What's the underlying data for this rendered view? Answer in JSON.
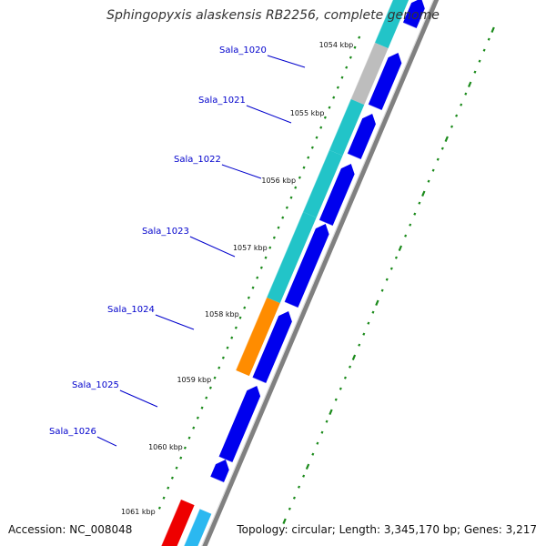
{
  "title": "Sphingopyxis alaskensis RB2256, complete genome",
  "footer": {
    "accession": "Accession: NC_008048",
    "summary": "Topology: circular; Length: 3,345,170 bp; Genes: 3,217"
  },
  "genes": [
    {
      "id": "sala-1020",
      "label": "Sala_1020"
    },
    {
      "id": "sala-1021",
      "label": "Sala_1021"
    },
    {
      "id": "sala-1022",
      "label": "Sala_1022"
    },
    {
      "id": "sala-1023",
      "label": "Sala_1023"
    },
    {
      "id": "sala-1024",
      "label": "Sala_1024"
    },
    {
      "id": "sala-1025",
      "label": "Sala_1025"
    },
    {
      "id": "sala-1026",
      "label": "Sala_1026"
    }
  ],
  "ticks": [
    "1054 kbp",
    "1055 kbp",
    "1056 kbp",
    "1057 kbp",
    "1058 kbp",
    "1059 kbp",
    "1060 kbp",
    "1061 kbp"
  ],
  "colors": {
    "background": "#ffffff",
    "backbone": "#808080",
    "cds_forward": "#0000ee",
    "cog_cyan": "#22c4c8",
    "cog_grey": "#bdbdbd",
    "cog_orange": "#ff8c00",
    "cog_red": "#ee0000",
    "cog_sky": "#2bb8f0",
    "gc_skew": "#1a8a1a",
    "label_line": "#0000cc"
  }
}
